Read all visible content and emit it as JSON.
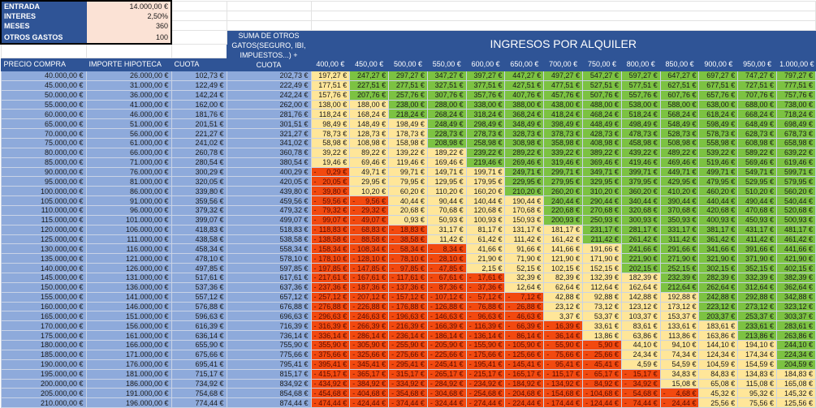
{
  "params": [
    {
      "label": "ENTRADA",
      "value": "14.000,00 €"
    },
    {
      "label": "INTERES",
      "value": "2,50%"
    },
    {
      "label": "MESES",
      "value": "360"
    },
    {
      "label": "OTROS GASTOS",
      "value": "100"
    }
  ],
  "headers": {
    "precio": "PRECIO COMPRA",
    "hipoteca": "IMPORTE HIPOTECA",
    "cuota": "CUOTA",
    "suma": "SUMA DE OTROS GATOS(SEGURO, IBI, IMPUESTOS...) + CUOTA",
    "ingresos_title": "INGRESOS POR ALQUILER"
  },
  "ingresos": [
    "400,00 €",
    "450,00 €",
    "500,00 €",
    "550,00 €",
    "600,00 €",
    "650,00 €",
    "700,00 €",
    "750,00 €",
    "800,00 €",
    "850,00 €",
    "900,00 €",
    "950,00 €",
    "1.000,00 €"
  ],
  "colors": {
    "header": "#2f5496",
    "data": "#8eaadb",
    "param": "#fbe2d5",
    "negative": "#f2490f",
    "medium": "#ffe699",
    "good": "#7cc242"
  },
  "rows": [
    {
      "precio": 40000,
      "hipoteca": 26000,
      "cuota": 102.73,
      "suma": 202.73,
      "cells": [
        197.27,
        247.27,
        297.27,
        347.27,
        397.27,
        447.27,
        497.27,
        547.27,
        597.27,
        647.27,
        697.27,
        747.27,
        797.27
      ]
    },
    {
      "precio": 45000,
      "hipoteca": 31000,
      "cuota": 122.49,
      "suma": 222.49,
      "cells": [
        177.51,
        227.51,
        277.51,
        327.51,
        377.51,
        427.51,
        477.51,
        527.51,
        577.51,
        627.51,
        677.51,
        727.51,
        777.51
      ]
    },
    {
      "precio": 50000,
      "hipoteca": 36000,
      "cuota": 142.24,
      "suma": 242.24,
      "cells": [
        157.76,
        207.76,
        257.76,
        307.76,
        357.76,
        407.76,
        457.76,
        507.76,
        557.76,
        607.76,
        657.76,
        707.76,
        757.76
      ]
    },
    {
      "precio": 55000,
      "hipoteca": 41000,
      "cuota": 162.0,
      "suma": 262.0,
      "cells": [
        138.0,
        188.0,
        238.0,
        288.0,
        338.0,
        388.0,
        438.0,
        488.0,
        538.0,
        588.0,
        638.0,
        688.0,
        738.0
      ]
    },
    {
      "precio": 60000,
      "hipoteca": 46000,
      "cuota": 181.76,
      "suma": 281.76,
      "cells": [
        118.24,
        168.24,
        218.24,
        268.24,
        318.24,
        368.24,
        418.24,
        468.24,
        518.24,
        568.24,
        618.24,
        668.24,
        718.24
      ]
    },
    {
      "precio": 65000,
      "hipoteca": 51000,
      "cuota": 201.51,
      "suma": 301.51,
      "cells": [
        98.49,
        148.49,
        198.49,
        248.49,
        298.49,
        348.49,
        398.49,
        448.49,
        498.49,
        548.49,
        598.49,
        648.49,
        698.49
      ]
    },
    {
      "precio": 70000,
      "hipoteca": 56000,
      "cuota": 221.27,
      "suma": 321.27,
      "cells": [
        78.73,
        128.73,
        178.73,
        228.73,
        278.73,
        328.73,
        378.73,
        428.73,
        478.73,
        528.73,
        578.73,
        628.73,
        678.73
      ]
    },
    {
      "precio": 75000,
      "hipoteca": 61000,
      "cuota": 241.02,
      "suma": 341.02,
      "cells": [
        58.98,
        108.98,
        158.98,
        208.98,
        258.98,
        308.98,
        358.98,
        408.98,
        458.98,
        508.98,
        558.98,
        608.98,
        658.98
      ]
    },
    {
      "precio": 80000,
      "hipoteca": 66000,
      "cuota": 260.78,
      "suma": 360.78,
      "cells": [
        39.22,
        89.22,
        139.22,
        189.22,
        239.22,
        289.22,
        339.22,
        389.22,
        439.22,
        489.22,
        539.22,
        589.22,
        639.22
      ]
    },
    {
      "precio": 85000,
      "hipoteca": 71000,
      "cuota": 280.54,
      "suma": 380.54,
      "cells": [
        19.46,
        69.46,
        119.46,
        169.46,
        219.46,
        269.46,
        319.46,
        369.46,
        419.46,
        469.46,
        519.46,
        569.46,
        619.46
      ]
    },
    {
      "precio": 90000,
      "hipoteca": 76000,
      "cuota": 300.29,
      "suma": 400.29,
      "cells": [
        -0.29,
        49.71,
        99.71,
        149.71,
        199.71,
        249.71,
        299.71,
        349.71,
        399.71,
        449.71,
        499.71,
        549.71,
        599.71
      ]
    },
    {
      "precio": 95000,
      "hipoteca": 81000,
      "cuota": 320.05,
      "suma": 420.05,
      "cells": [
        -20.05,
        29.95,
        79.95,
        129.95,
        179.95,
        229.95,
        279.95,
        329.95,
        379.95,
        429.95,
        479.95,
        529.95,
        579.95
      ]
    },
    {
      "precio": 100000,
      "hipoteca": 86000,
      "cuota": 339.8,
      "suma": 439.8,
      "cells": [
        -39.8,
        10.2,
        60.2,
        110.2,
        160.2,
        210.2,
        260.2,
        310.2,
        360.2,
        410.2,
        460.2,
        510.2,
        560.2
      ]
    },
    {
      "precio": 105000,
      "hipoteca": 91000,
      "cuota": 359.56,
      "suma": 459.56,
      "cells": [
        -59.56,
        -9.56,
        40.44,
        90.44,
        140.44,
        190.44,
        240.44,
        290.44,
        340.44,
        390.44,
        440.44,
        490.44,
        540.44
      ]
    },
    {
      "precio": 110000,
      "hipoteca": 96000,
      "cuota": 379.32,
      "suma": 479.32,
      "cells": [
        -79.32,
        -29.32,
        20.68,
        70.68,
        120.68,
        170.68,
        220.68,
        270.68,
        320.68,
        370.68,
        420.68,
        470.68,
        520.68
      ]
    },
    {
      "precio": 115000,
      "hipoteca": 101000,
      "cuota": 399.07,
      "suma": 499.07,
      "cells": [
        -99.07,
        -49.07,
        0.93,
        50.93,
        100.93,
        150.93,
        200.93,
        250.93,
        300.93,
        350.93,
        400.93,
        450.93,
        500.93
      ]
    },
    {
      "precio": 120000,
      "hipoteca": 106000,
      "cuota": 418.83,
      "suma": 518.83,
      "cells": [
        -118.83,
        -68.83,
        -18.83,
        31.17,
        81.17,
        131.17,
        181.17,
        231.17,
        281.17,
        331.17,
        381.17,
        431.17,
        481.17
      ]
    },
    {
      "precio": 125000,
      "hipoteca": 111000,
      "cuota": 438.58,
      "suma": 538.58,
      "cells": [
        -138.58,
        -88.58,
        -38.58,
        11.42,
        61.42,
        111.42,
        161.42,
        211.42,
        261.42,
        311.42,
        361.42,
        411.42,
        461.42
      ]
    },
    {
      "precio": 130000,
      "hipoteca": 116000,
      "cuota": 458.34,
      "suma": 558.34,
      "cells": [
        -158.34,
        -108.34,
        -58.34,
        -8.34,
        41.66,
        91.66,
        141.66,
        191.66,
        241.66,
        291.66,
        341.66,
        391.66,
        441.66
      ]
    },
    {
      "precio": 135000,
      "hipoteca": 121000,
      "cuota": 478.1,
      "suma": 578.1,
      "cells": [
        -178.1,
        -128.1,
        -78.1,
        -28.1,
        21.9,
        71.9,
        121.9,
        171.9,
        221.9,
        271.9,
        321.9,
        371.9,
        421.9
      ]
    },
    {
      "precio": 140000,
      "hipoteca": 126000,
      "cuota": 497.85,
      "suma": 597.85,
      "cells": [
        -197.85,
        -147.85,
        -97.85,
        -47.85,
        2.15,
        52.15,
        102.15,
        152.15,
        202.15,
        252.15,
        302.15,
        352.15,
        402.15
      ]
    },
    {
      "precio": 145000,
      "hipoteca": 131000,
      "cuota": 517.61,
      "suma": 617.61,
      "cells": [
        -217.61,
        -167.61,
        -117.61,
        -67.61,
        -17.61,
        32.39,
        82.39,
        132.39,
        182.39,
        232.39,
        282.39,
        332.39,
        382.39
      ]
    },
    {
      "precio": 150000,
      "hipoteca": 136000,
      "cuota": 537.36,
      "suma": 637.36,
      "cells": [
        -237.36,
        -187.36,
        -137.36,
        -87.36,
        -37.36,
        12.64,
        62.64,
        112.64,
        162.64,
        212.64,
        262.64,
        312.64,
        362.64
      ]
    },
    {
      "precio": 155000,
      "hipoteca": 141000,
      "cuota": 557.12,
      "suma": 657.12,
      "cells": [
        -257.12,
        -207.12,
        -157.12,
        -107.12,
        -57.12,
        -7.12,
        42.88,
        92.88,
        142.88,
        192.88,
        242.88,
        292.88,
        342.88
      ]
    },
    {
      "precio": 160000,
      "hipoteca": 146000,
      "cuota": 576.88,
      "suma": 676.88,
      "cells": [
        -276.88,
        -226.88,
        -176.88,
        -126.88,
        -76.88,
        -26.88,
        23.12,
        73.12,
        123.12,
        173.12,
        223.12,
        273.12,
        323.12
      ]
    },
    {
      "precio": 165000,
      "hipoteca": 151000,
      "cuota": 596.63,
      "suma": 696.63,
      "cells": [
        -296.63,
        -246.63,
        -196.63,
        -146.63,
        -96.63,
        -46.63,
        3.37,
        53.37,
        103.37,
        153.37,
        203.37,
        253.37,
        303.37
      ]
    },
    {
      "precio": 170000,
      "hipoteca": 156000,
      "cuota": 616.39,
      "suma": 716.39,
      "cells": [
        -316.39,
        -266.39,
        -216.39,
        -166.39,
        -116.39,
        -66.39,
        -16.39,
        33.61,
        83.61,
        133.61,
        183.61,
        233.61,
        283.61
      ]
    },
    {
      "precio": 175000,
      "hipoteca": 161000,
      "cuota": 636.14,
      "suma": 736.14,
      "cells": [
        -336.14,
        -286.14,
        -236.14,
        -186.14,
        -136.14,
        -86.14,
        -36.14,
        13.86,
        63.86,
        113.86,
        163.86,
        213.86,
        263.86
      ]
    },
    {
      "precio": 180000,
      "hipoteca": 166000,
      "cuota": 655.9,
      "suma": 755.9,
      "cells": [
        -355.9,
        -305.9,
        -255.9,
        -205.9,
        -155.9,
        -105.9,
        -55.9,
        -5.9,
        44.1,
        94.1,
        144.1,
        194.1,
        244.1
      ]
    },
    {
      "precio": 185000,
      "hipoteca": 171000,
      "cuota": 675.66,
      "suma": 775.66,
      "cells": [
        -375.66,
        -325.66,
        -275.66,
        -225.66,
        -175.66,
        -125.66,
        -75.66,
        -25.66,
        24.34,
        74.34,
        124.34,
        174.34,
        224.34
      ]
    },
    {
      "precio": 190000,
      "hipoteca": 176000,
      "cuota": 695.41,
      "suma": 795.41,
      "cells": [
        -395.41,
        -345.41,
        -295.41,
        -245.41,
        -195.41,
        -145.41,
        -95.41,
        -45.41,
        4.59,
        54.59,
        104.59,
        154.59,
        204.59
      ]
    },
    {
      "precio": 195000,
      "hipoteca": 181000,
      "cuota": 715.17,
      "suma": 815.17,
      "cells": [
        -415.17,
        -365.17,
        -315.17,
        -265.17,
        -215.17,
        -165.17,
        -115.17,
        -65.17,
        -15.17,
        34.83,
        84.83,
        134.83,
        184.83
      ]
    },
    {
      "precio": 200000,
      "hipoteca": 186000,
      "cuota": 734.92,
      "suma": 834.92,
      "cells": [
        -434.92,
        -384.92,
        -334.92,
        -284.92,
        -234.92,
        -184.92,
        -134.92,
        -84.92,
        -34.92,
        15.08,
        65.08,
        115.08,
        165.08
      ]
    },
    {
      "precio": 205000,
      "hipoteca": 191000,
      "cuota": 754.68,
      "suma": 854.68,
      "cells": [
        -454.68,
        -404.68,
        -354.68,
        -304.68,
        -254.68,
        -204.68,
        -154.68,
        -104.68,
        -54.68,
        -4.68,
        45.32,
        95.32,
        145.32
      ]
    },
    {
      "precio": 210000,
      "hipoteca": 196000,
      "cuota": 774.44,
      "suma": 874.44,
      "cells": [
        -474.44,
        -424.44,
        -374.44,
        -324.44,
        -274.44,
        -224.44,
        -174.44,
        -124.44,
        -74.44,
        -24.44,
        25.56,
        75.56,
        125.56
      ]
    }
  ]
}
